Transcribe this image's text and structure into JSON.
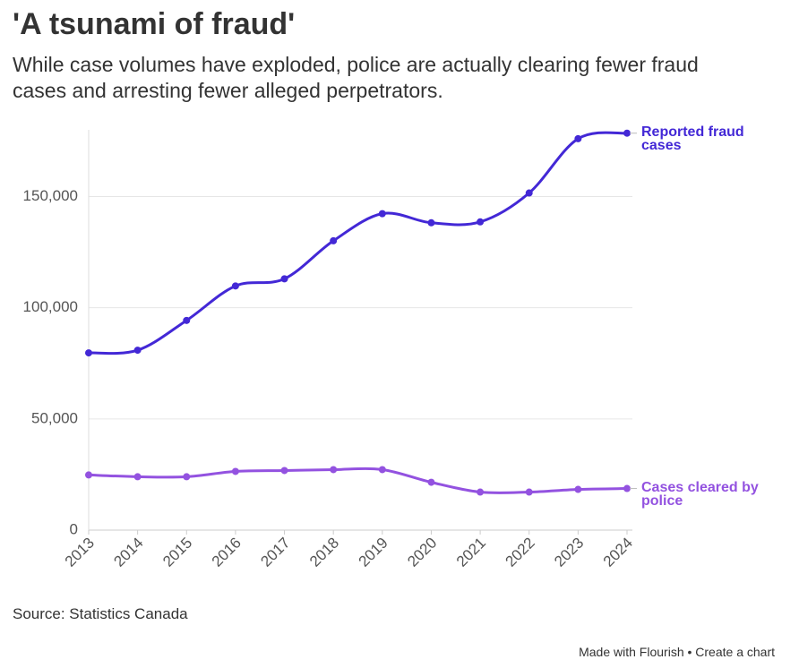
{
  "chart_data": {
    "type": "line",
    "title": "'A tsunami of fraud'",
    "subtitle": "While case volumes have exploded, police are actually clearing fewer fraud cases and arresting fewer alleged perpetrators.",
    "source": "Source: Statistics Canada",
    "footer": "Made with Flourish • Create a chart",
    "categories": [
      "2013",
      "2014",
      "2015",
      "2016",
      "2017",
      "2018",
      "2019",
      "2020",
      "2021",
      "2022",
      "2023",
      "2024"
    ],
    "series": [
      {
        "name": "Reported fraud cases",
        "color": "#4328d6",
        "values": [
          79700,
          80900,
          94300,
          109800,
          113000,
          130100,
          142300,
          138200,
          138600,
          151600,
          176000,
          178500
        ]
      },
      {
        "name": "Cases cleared by police",
        "color": "#9352e0",
        "values": [
          24800,
          24000,
          24000,
          26400,
          26800,
          27200,
          27200,
          21500,
          17100,
          17100,
          18300,
          18700
        ]
      }
    ],
    "ylim": [
      0,
      180000
    ],
    "yticks": [
      0,
      {
        "value": 50000,
        "label": "50,000"
      },
      {
        "value": 100000,
        "label": "100,000"
      },
      {
        "value": 150000,
        "label": "150,000"
      }
    ],
    "grid": true
  }
}
